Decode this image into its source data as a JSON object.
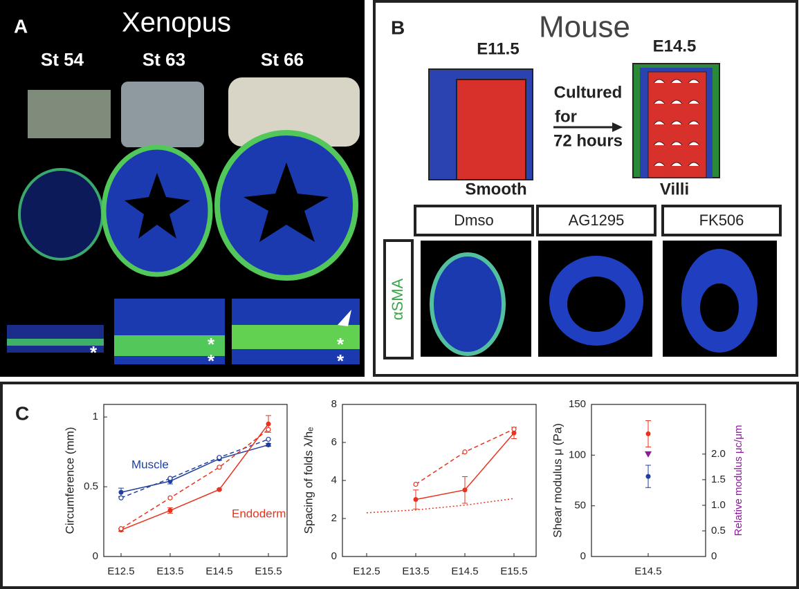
{
  "panel_a": {
    "label": "A",
    "title": "Xenopus",
    "stages": [
      "St 54",
      "St 63",
      "St 66"
    ],
    "asterisks": [
      "*",
      "*",
      "*",
      "*",
      "*"
    ]
  },
  "panel_b": {
    "label": "B",
    "title": "Mouse",
    "stages": [
      "E11.5",
      "E14.5"
    ],
    "culture": [
      "Cultured",
      "for",
      "72 hours"
    ],
    "states": [
      "Smooth",
      "Villi"
    ],
    "treatments": [
      "Dmso",
      "AG1295",
      "FK506"
    ],
    "stain": "αSMA"
  },
  "panel_c": {
    "label": "C"
  },
  "chart_data": [
    {
      "type": "line",
      "ylabel": "Circumference (mm)",
      "categories": [
        "E12.5",
        "E13.5",
        "E14.5",
        "E15.5"
      ],
      "ylim": [
        0,
        1.09
      ],
      "yticks": [
        0,
        0.5,
        1
      ],
      "series": [
        {
          "name": "Muscle",
          "color": "#1f3f9f",
          "style": "solid",
          "marker": "filled",
          "values": [
            0.46,
            0.54,
            0.7,
            0.8
          ],
          "errors": [
            0.03,
            0.02,
            0.01,
            0.01
          ]
        },
        {
          "color": "#1f3f9f",
          "style": "dashed",
          "marker": "open",
          "values": [
            0.42,
            0.56,
            0.71,
            0.84
          ]
        },
        {
          "name": "Endoderm",
          "color": "#e8321e",
          "style": "solid",
          "marker": "filled",
          "values": [
            0.19,
            0.33,
            0.48,
            0.95
          ],
          "errors": [
            0.01,
            0.02,
            0.005,
            0.06
          ]
        },
        {
          "color": "#e8321e",
          "style": "dashed",
          "marker": "open",
          "values": [
            0.2,
            0.42,
            0.64,
            0.91
          ]
        }
      ]
    },
    {
      "type": "line",
      "ylabel": "Spacing of folds λ/hₑ",
      "categories": [
        "E12.5",
        "E13.5",
        "E14.5",
        "E15.5"
      ],
      "ylim": [
        0,
        8
      ],
      "yticks": [
        0,
        2,
        4,
        6,
        8
      ],
      "series": [
        {
          "color": "#e8321e",
          "style": "solid",
          "marker": "filled",
          "values": [
            null,
            3.0,
            3.5,
            6.5
          ],
          "errors": [
            null,
            0.5,
            0.7,
            0.3
          ]
        },
        {
          "color": "#e8321e",
          "style": "dashed",
          "marker": "open",
          "values": [
            null,
            3.8,
            5.5,
            6.7
          ]
        },
        {
          "color": "#e8321e",
          "style": "dotted",
          "marker": "none",
          "values": [
            2.3,
            2.45,
            2.7,
            3.05
          ]
        }
      ]
    },
    {
      "type": "scatter",
      "ylabel": "Shear modulus μ (Pa)",
      "y2label": "Relative modulus μc/μm",
      "categories": [
        "E14.5"
      ],
      "ylim": [
        0,
        150
      ],
      "yticks": [
        0,
        50,
        100,
        150
      ],
      "y2lim": [
        0,
        2.97
      ],
      "y2ticks": [
        0,
        0.5,
        {
          "value": 1,
          "label": "1.0"
        },
        1.5,
        {
          "value": 2,
          "label": "2.0"
        }
      ],
      "y2color": "#8b1a9b",
      "series": [
        {
          "color": "#e8321e",
          "marker": "filled",
          "values": [
            121
          ],
          "errors": [
            13
          ]
        },
        {
          "color": "#1f3f9f",
          "marker": "filled",
          "values": [
            79
          ],
          "errors": [
            11
          ]
        },
        {
          "color": "#8b1a9b",
          "marker": "triangle",
          "axis": "y2",
          "values": [
            2.0
          ]
        }
      ]
    }
  ]
}
